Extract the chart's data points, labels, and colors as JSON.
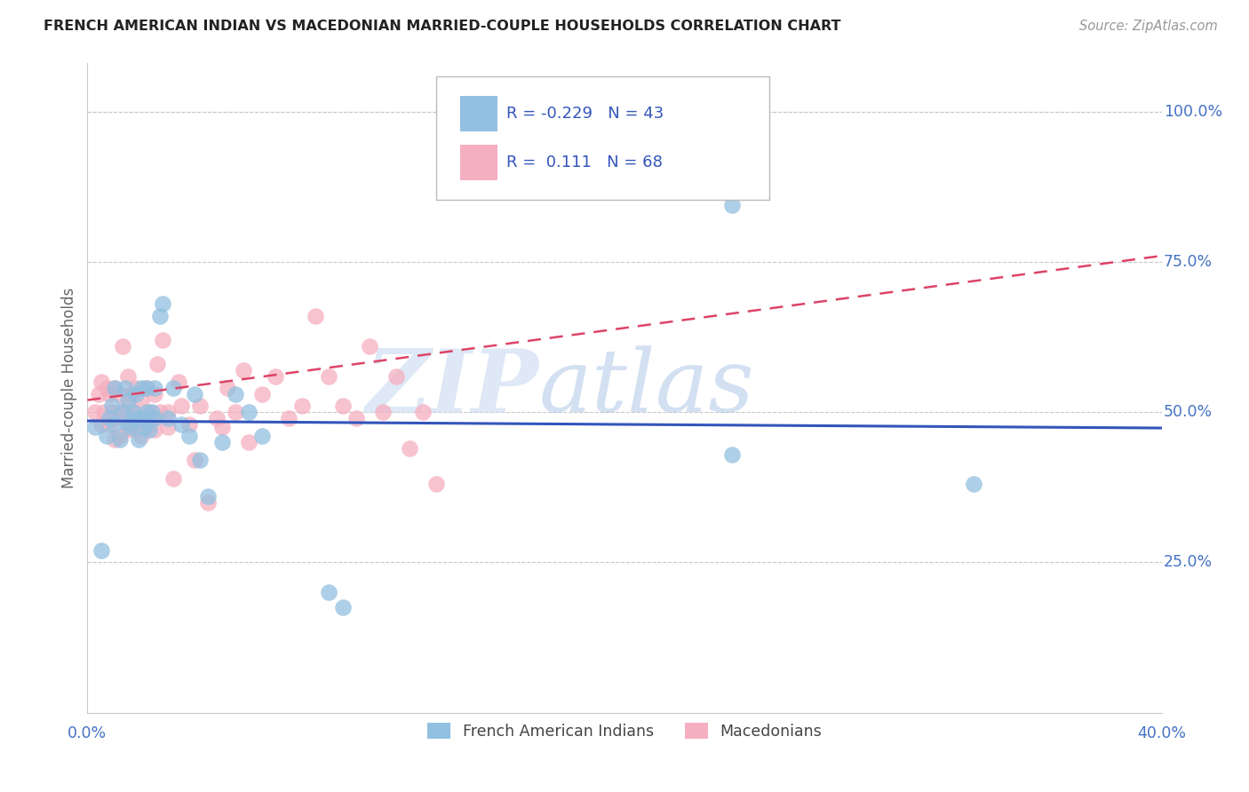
{
  "title": "FRENCH AMERICAN INDIAN VS MACEDONIAN MARRIED-COUPLE HOUSEHOLDS CORRELATION CHART",
  "source": "Source: ZipAtlas.com",
  "ylabel": "Married-couple Households",
  "ytick_labels": [
    "25.0%",
    "50.0%",
    "75.0%",
    "100.0%"
  ],
  "ytick_values": [
    0.25,
    0.5,
    0.75,
    1.0
  ],
  "xlim": [
    0.0,
    0.4
  ],
  "ylim": [
    0.0,
    1.08
  ],
  "legend_blue_label": "French American Indians",
  "legend_pink_label": "Macedonians",
  "legend_r_blue": "-0.229",
  "legend_n_blue": "43",
  "legend_r_pink": "0.111",
  "legend_n_pink": "68",
  "blue_color": "#92c0e0",
  "pink_color": "#f5afc0",
  "blue_line_color": "#3355bb",
  "pink_line_color": "#dd4466",
  "background_color": "#ffffff",
  "grid_color": "#c8c8c8",
  "title_color": "#222222",
  "axis_label_color": "#4472c4",
  "watermark_zip": "ZIP",
  "watermark_atlas": "atlas",
  "blue_x": [
    0.003,
    0.005,
    0.007,
    0.008,
    0.009,
    0.01,
    0.01,
    0.012,
    0.013,
    0.014,
    0.015,
    0.015,
    0.016,
    0.017,
    0.018,
    0.018,
    0.019,
    0.02,
    0.02,
    0.021,
    0.022,
    0.022,
    0.023,
    0.024,
    0.025,
    0.025,
    0.027,
    0.028,
    0.03,
    0.032,
    0.035,
    0.038,
    0.04,
    0.042,
    0.045,
    0.05,
    0.055,
    0.06,
    0.065,
    0.09,
    0.095,
    0.24,
    0.33
  ],
  "blue_y": [
    0.475,
    0.27,
    0.46,
    0.49,
    0.51,
    0.48,
    0.54,
    0.455,
    0.5,
    0.54,
    0.48,
    0.52,
    0.475,
    0.5,
    0.53,
    0.49,
    0.455,
    0.49,
    0.54,
    0.475,
    0.5,
    0.54,
    0.47,
    0.5,
    0.49,
    0.54,
    0.66,
    0.68,
    0.49,
    0.54,
    0.48,
    0.46,
    0.53,
    0.42,
    0.36,
    0.45,
    0.53,
    0.5,
    0.46,
    0.2,
    0.175,
    0.43,
    0.38
  ],
  "pink_x": [
    0.003,
    0.004,
    0.005,
    0.005,
    0.006,
    0.007,
    0.008,
    0.008,
    0.009,
    0.01,
    0.01,
    0.01,
    0.011,
    0.012,
    0.012,
    0.013,
    0.013,
    0.014,
    0.015,
    0.015,
    0.015,
    0.016,
    0.016,
    0.017,
    0.018,
    0.018,
    0.019,
    0.02,
    0.02,
    0.021,
    0.022,
    0.022,
    0.023,
    0.024,
    0.025,
    0.025,
    0.026,
    0.027,
    0.028,
    0.03,
    0.03,
    0.032,
    0.034,
    0.035,
    0.038,
    0.04,
    0.042,
    0.045,
    0.048,
    0.05,
    0.052,
    0.055,
    0.058,
    0.06,
    0.065,
    0.07,
    0.075,
    0.08,
    0.085,
    0.09,
    0.095,
    0.1,
    0.105,
    0.11,
    0.115,
    0.12,
    0.125,
    0.13
  ],
  "pink_y": [
    0.5,
    0.53,
    0.48,
    0.55,
    0.5,
    0.54,
    0.48,
    0.53,
    0.5,
    0.455,
    0.49,
    0.54,
    0.5,
    0.46,
    0.53,
    0.49,
    0.61,
    0.5,
    0.47,
    0.51,
    0.56,
    0.48,
    0.53,
    0.5,
    0.47,
    0.54,
    0.49,
    0.46,
    0.52,
    0.49,
    0.475,
    0.54,
    0.5,
    0.49,
    0.47,
    0.53,
    0.58,
    0.5,
    0.62,
    0.475,
    0.5,
    0.39,
    0.55,
    0.51,
    0.48,
    0.42,
    0.51,
    0.35,
    0.49,
    0.475,
    0.54,
    0.5,
    0.57,
    0.45,
    0.53,
    0.56,
    0.49,
    0.51,
    0.66,
    0.56,
    0.51,
    0.49,
    0.61,
    0.5,
    0.56,
    0.44,
    0.5,
    0.38
  ],
  "blue_outlier_x": [
    0.24
  ],
  "blue_outlier_y": [
    0.845
  ]
}
